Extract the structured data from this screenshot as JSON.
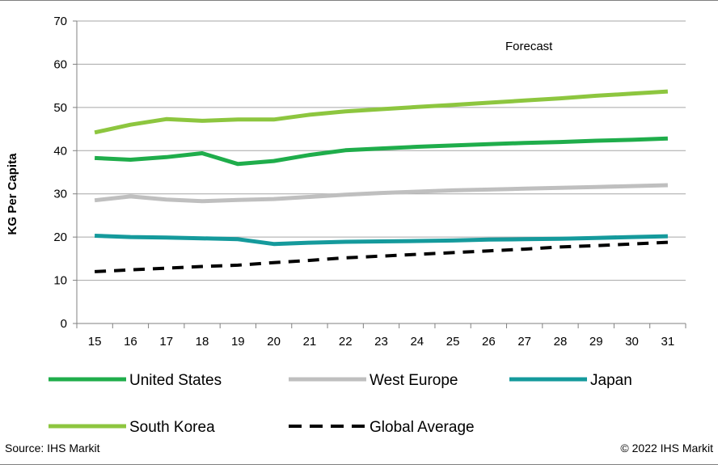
{
  "chart_data": {
    "type": "line",
    "title": "",
    "xlabel": "",
    "ylabel": "KG Per Capita",
    "ylim": [
      0,
      70
    ],
    "yticks": [
      0,
      10,
      20,
      30,
      40,
      50,
      60,
      70
    ],
    "categories": [
      "15",
      "16",
      "17",
      "18",
      "19",
      "20",
      "21",
      "22",
      "23",
      "24",
      "25",
      "26",
      "27",
      "28",
      "29",
      "30",
      "31"
    ],
    "annotation": "Forecast",
    "grid": "horizontal",
    "legend_position": "bottom",
    "series": [
      {
        "name": "United States",
        "color": "#1fad4b",
        "dashed": false,
        "values": [
          38.3,
          37.9,
          38.5,
          39.4,
          36.9,
          37.6,
          39.0,
          40.1,
          40.5,
          40.9,
          41.2,
          41.5,
          41.8,
          42.0,
          42.3,
          42.5,
          42.8
        ]
      },
      {
        "name": "West Europe",
        "color": "#bfbfbf",
        "dashed": false,
        "values": [
          28.5,
          29.4,
          28.7,
          28.3,
          28.6,
          28.8,
          29.3,
          29.8,
          30.2,
          30.5,
          30.8,
          31.0,
          31.2,
          31.4,
          31.6,
          31.8,
          32.0
        ]
      },
      {
        "name": "Japan",
        "color": "#159a9c",
        "dashed": false,
        "values": [
          20.3,
          20.0,
          19.9,
          19.7,
          19.5,
          18.4,
          18.7,
          18.9,
          19.0,
          19.1,
          19.2,
          19.4,
          19.5,
          19.6,
          19.8,
          20.0,
          20.2
        ]
      },
      {
        "name": "South Korea",
        "color": "#8dc63f",
        "dashed": false,
        "values": [
          44.2,
          46.0,
          47.3,
          46.9,
          47.2,
          47.2,
          48.3,
          49.1,
          49.6,
          50.1,
          50.6,
          51.1,
          51.6,
          52.1,
          52.7,
          53.2,
          53.7
        ]
      },
      {
        "name": "Global Average",
        "color": "#000000",
        "dashed": true,
        "values": [
          12.0,
          12.4,
          12.8,
          13.2,
          13.5,
          14.1,
          14.6,
          15.2,
          15.6,
          16.0,
          16.4,
          16.8,
          17.2,
          17.7,
          18.0,
          18.4,
          18.8
        ]
      }
    ]
  },
  "footer": {
    "source": "Source: IHS Markit",
    "copyright": "© 2022 IHS Markit"
  }
}
